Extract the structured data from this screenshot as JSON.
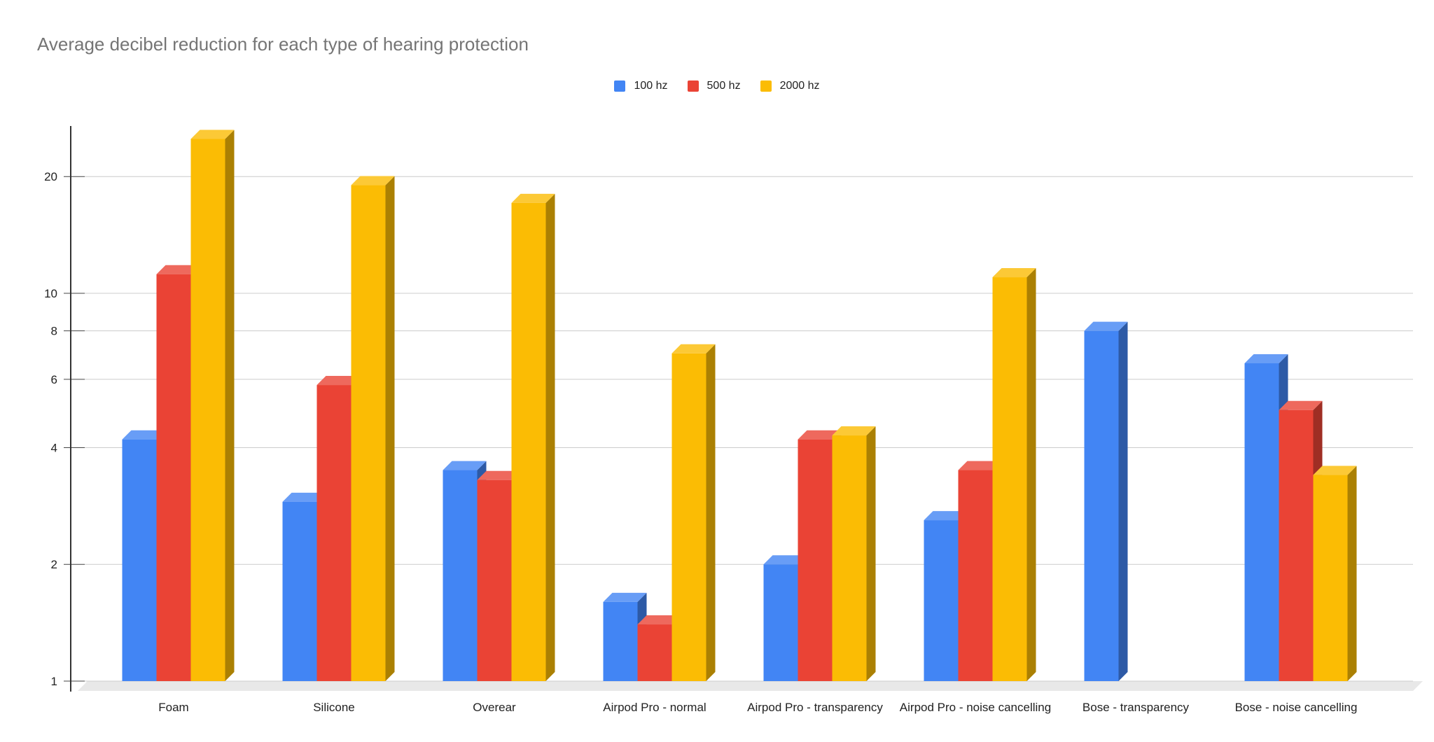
{
  "chart_data": {
    "type": "bar",
    "title": "Average decibel reduction for each type of hearing protection",
    "categories": [
      "Foam",
      "Silicone",
      "Overear",
      "Airpod Pro - normal",
      "Airpod Pro - transparency",
      "Airpod Pro - noise cancelling",
      "Bose - transparency",
      "Bose - noise cancelling"
    ],
    "series": [
      {
        "name": "100 hz",
        "color": "#4285F4",
        "values": [
          4.2,
          2.9,
          3.5,
          1.6,
          2.0,
          2.6,
          8.0,
          6.6
        ]
      },
      {
        "name": "500 hz",
        "color": "#EA4335",
        "values": [
          11.2,
          5.8,
          3.3,
          1.4,
          4.2,
          3.5,
          null,
          5.0
        ]
      },
      {
        "name": "2000 hz",
        "color": "#FBBC04",
        "values": [
          25.0,
          19.0,
          17.1,
          7.0,
          4.3,
          11.0,
          null,
          3.4
        ]
      }
    ],
    "scale": "log",
    "ylim": [
      1,
      27
    ],
    "yticks": [
      "1",
      "2",
      "4",
      "6",
      "8",
      "10",
      "20"
    ],
    "legend_position": "top",
    "grid": true,
    "style": "3d-bar"
  }
}
